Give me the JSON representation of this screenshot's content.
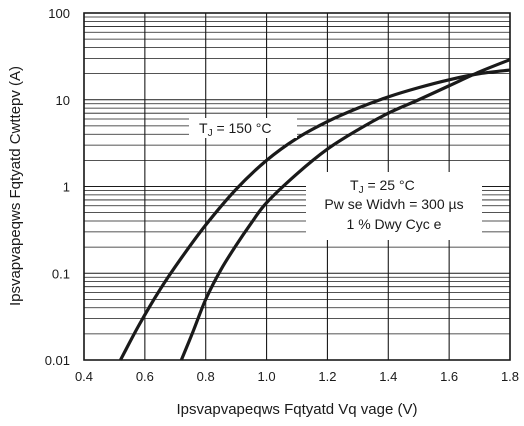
{
  "chart_data": {
    "type": "line",
    "title": "",
    "xlabel": "Ipsvapvapeqws Fqtyatd Vq vage (V)",
    "ylabel": "Ipsvapvapeqws Fqtyatd Cwttepv (A)",
    "xlim": [
      0.4,
      1.8
    ],
    "ylim": [
      0.01,
      100
    ],
    "yscale": "log",
    "grid": true,
    "x_ticks": [
      "0.4",
      "0.6",
      "0.8",
      "1.0",
      "1.2",
      "1.4",
      "1.6",
      "1.8"
    ],
    "y_ticks": [
      "0.01",
      "0.1",
      "1",
      "10",
      "100"
    ],
    "series": [
      {
        "name": "T_J = 150 °C",
        "x": [
          0.52,
          0.58,
          0.65,
          0.72,
          0.8,
          0.9,
          1.0,
          1.1,
          1.2,
          1.3,
          1.4,
          1.5,
          1.6,
          1.7,
          1.8
        ],
        "y": [
          0.01,
          0.025,
          0.065,
          0.15,
          0.36,
          0.93,
          2.0,
          3.6,
          5.6,
          8.0,
          10.8,
          13.8,
          17.0,
          20.0,
          22.0
        ]
      },
      {
        "name": "T_J = 25 °C",
        "x": [
          0.72,
          0.76,
          0.8,
          0.85,
          0.9,
          0.95,
          1.0,
          1.1,
          1.2,
          1.3,
          1.4,
          1.5,
          1.6,
          1.7,
          1.8
        ],
        "y": [
          0.01,
          0.022,
          0.05,
          0.11,
          0.21,
          0.38,
          0.65,
          1.4,
          2.7,
          4.5,
          7.0,
          10.0,
          14.5,
          21.0,
          29.0
        ]
      }
    ],
    "annotations": [
      {
        "text": "T",
        "sub": "J",
        "rest": " = 150 °C"
      },
      {
        "text": "T",
        "sub": "J",
        "rest": " = 25 °C"
      },
      {
        "text": "Pw se Widvh = 300 µs"
      },
      {
        "text": "1 % Dwy Cyc e"
      }
    ]
  }
}
